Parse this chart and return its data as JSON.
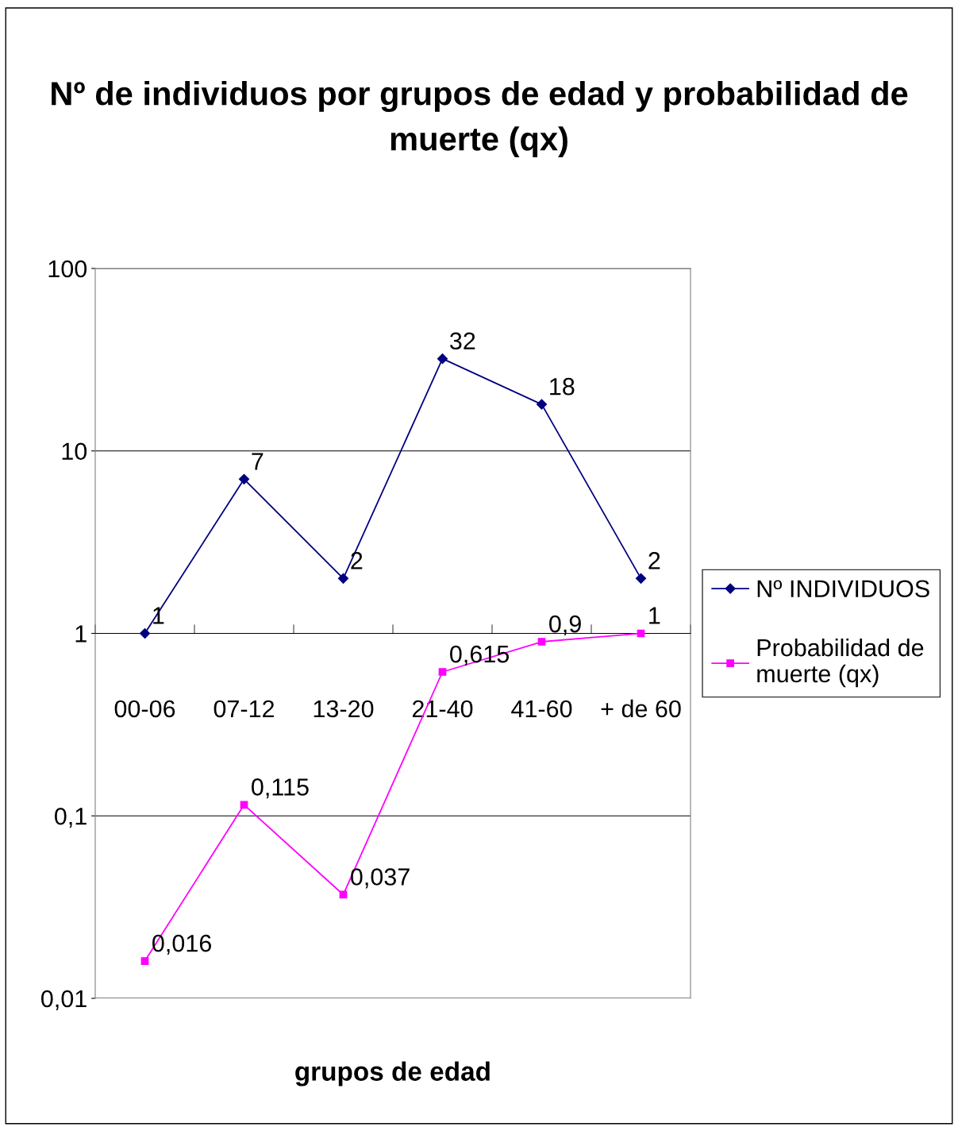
{
  "chart_data": {
    "type": "line",
    "title": "Nº de individuos por grupos de edad y probabilidad de muerte (qx)",
    "xlabel": "grupos de edad",
    "categories": [
      "00-06",
      "07-12",
      "13-20",
      "21-40",
      "41-60",
      "+ de 60"
    ],
    "series": [
      {
        "name": "Nº INDIVIDUOS",
        "color": "#000080",
        "marker": "diamond",
        "values": [
          1,
          7,
          2,
          32,
          18,
          2
        ],
        "value_labels": [
          "1",
          "7",
          "2",
          "32",
          "18",
          "2"
        ]
      },
      {
        "name": "Probabilidad de muerte (qx)",
        "color": "#ff00ff",
        "marker": "square",
        "values": [
          0.016,
          0.115,
          0.037,
          0.615,
          0.9,
          1
        ],
        "value_labels": [
          "0,016",
          "0,115",
          "0,037",
          "0,615",
          "0,9",
          "1"
        ]
      }
    ],
    "log": "y",
    "ylim": [
      0.01,
      100
    ],
    "yticks": [
      {
        "value": 0.01,
        "label": "0,01"
      },
      {
        "value": 0.1,
        "label": "0,1"
      },
      {
        "value": 1,
        "label": "1"
      },
      {
        "value": 10,
        "label": "10"
      },
      {
        "value": 100,
        "label": "100"
      }
    ],
    "grid": "y",
    "legend": "right",
    "line_style": "solid"
  }
}
